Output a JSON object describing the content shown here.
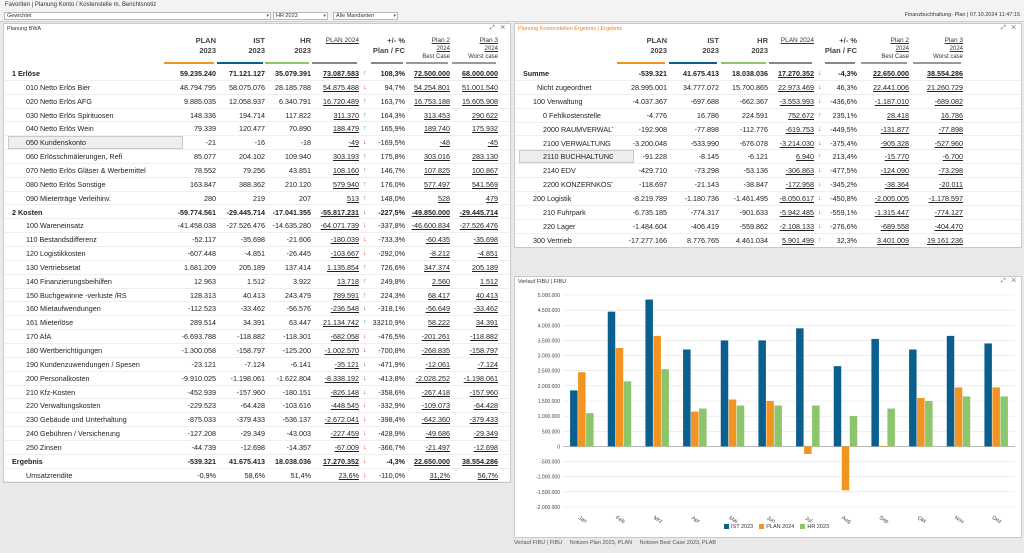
{
  "topbar": {
    "favorites": "Favoriten | Planung Konto / Kostenstelle m. Berichtsnotiz",
    "selects": [
      "Gewichtet",
      "",
      "HR 2023",
      "Alle Mandanten"
    ],
    "right_text": "Finanzbuchhaltung- Plan | 07.10.2024 11:47:15"
  },
  "left_panel": {
    "title": "Planung BWA",
    "headers": [
      {
        "l1": "PLAN",
        "l2": "2023"
      },
      {
        "l1": "IST",
        "l2": "2023"
      },
      {
        "l1": "HR",
        "l2": "2023"
      },
      {
        "l1": "PLAN 2024",
        "l2": ""
      },
      {
        "l1": "+/- %",
        "l2": "Plan / FC"
      },
      {
        "l1": "Plan 2",
        "l2": "2024",
        "l3": "Best Case"
      },
      {
        "l1": "Plan 3",
        "l2": "2024",
        "l3": "Worst case"
      }
    ],
    "rows": [
      {
        "label": "1 Erlöse",
        "bold": true,
        "vals": [
          "59.235.240",
          "71.121.127",
          "35.079.391",
          "73.087.583"
        ],
        "dir": "up",
        "pct": "108,3%",
        "p2": "72.500.000",
        "p3": "68.000.000"
      },
      {
        "label": "010 Netto Erlös Bier",
        "vals": [
          "48.794.795",
          "58.075.076",
          "28.185.788",
          "54.875.488"
        ],
        "dir": "down",
        "pct": "94,7%",
        "p2": "54.254.801",
        "p3": "51.001.540"
      },
      {
        "label": "020 Netto Erlös AFG",
        "vals": [
          "9.885.035",
          "12.058.937",
          "6.340.791",
          "16.720.489"
        ],
        "dir": "up",
        "pct": "163,7%",
        "p2": "16.753.188",
        "p3": "15.605.908"
      },
      {
        "label": "030 Netto Erlös Spirituosen",
        "vals": [
          "148.336",
          "194.714",
          "117.822",
          "311.370"
        ],
        "dir": "up",
        "pct": "164,3%",
        "p2": "313.453",
        "p3": "290.622"
      },
      {
        "label": "040 Netto Erlös Wein",
        "vals": [
          "79.339",
          "120.477",
          "70.890",
          "188.479"
        ],
        "dir": "up",
        "pct": "165,9%",
        "p2": "189.740",
        "p3": "175.932"
      },
      {
        "label": "050 Kundenskonto",
        "vals": [
          "-21",
          "-16",
          "-18",
          "-49"
        ],
        "dir": "down",
        "pct": "-169,5%",
        "p2": "-48",
        "p3": "-45",
        "sel": true
      },
      {
        "label": "060 Erlösschmälerungen, Refi",
        "vals": [
          "85.077",
          "204.102",
          "109.940",
          "303.193"
        ],
        "dir": "up",
        "pct": "175,8%",
        "p2": "303.016",
        "p3": "283.130"
      },
      {
        "label": "070 Netto Erlös Gläser & Werbemittel",
        "vals": [
          "78.552",
          "79.256",
          "43.851",
          "108.160"
        ],
        "dir": "up",
        "pct": "146,7%",
        "p2": "107.825",
        "p3": "100.867"
      },
      {
        "label": "080 Netto Erlös Sonstige",
        "vals": [
          "163.847",
          "388.362",
          "210.120",
          "579.940"
        ],
        "dir": "up",
        "pct": "176,0%",
        "p2": "577.497",
        "p3": "541.569"
      },
      {
        "label": "090 Mieterträge Verleihinv.",
        "vals": [
          "280",
          "219",
          "207",
          "513"
        ],
        "dir": "up",
        "pct": "148,0%",
        "p2": "528",
        "p3": "479"
      },
      {
        "label": "2 Kosten",
        "bold": true,
        "vals": [
          "-59.774.561",
          "-29.445.714",
          "-17.041.355",
          "-55.817.231"
        ],
        "dir": "down",
        "pct": "-227,5%",
        "p2": "-49.850.000",
        "p3": "-29.445.714"
      },
      {
        "label": "100 Wareneinsatz",
        "vals": [
          "-41.458.038",
          "-27.526.476",
          "-14.635.280",
          "-64.071.739"
        ],
        "dir": "down",
        "pct": "-337,8%",
        "p2": "-46.600.834",
        "p3": "-27.526.476"
      },
      {
        "label": "110 Bestandsdifferenz",
        "vals": [
          "-52.117",
          "-35.698",
          "-21.606",
          "-180.039"
        ],
        "dir": "down",
        "pct": "-733,3%",
        "p2": "-60.435",
        "p3": "-35.698"
      },
      {
        "label": "120 Logistikkosten",
        "vals": [
          "-607.448",
          "-4.851",
          "-26.445",
          "-103.667"
        ],
        "dir": "down",
        "pct": "-292,0%",
        "p2": "-8.212",
        "p3": "-4.851"
      },
      {
        "label": "130 Vertriebsetat",
        "vals": [
          "1.681.209",
          "205.189",
          "137.414",
          "1.135.854"
        ],
        "dir": "up",
        "pct": "726,6%",
        "p2": "347.374",
        "p3": "205.189"
      },
      {
        "label": "140 Finanzierungsbeihilfen",
        "vals": [
          "12.963",
          "1.512",
          "3.922",
          "13.718"
        ],
        "dir": "up",
        "pct": "249,8%",
        "p2": "2.560",
        "p3": "1.512"
      },
      {
        "label": "150 Buchgewinne -verluste /RS",
        "vals": [
          "128.313",
          "40.413",
          "243.479",
          "789.591"
        ],
        "dir": "up",
        "pct": "224,3%",
        "p2": "68.417",
        "p3": "40.413"
      },
      {
        "label": "160 Mietaufwendungen",
        "vals": [
          "-112.523",
          "-33.462",
          "-56.576",
          "-236.548"
        ],
        "dir": "down",
        "pct": "-318,1%",
        "p2": "-56.649",
        "p3": "-33.462"
      },
      {
        "label": "161 Mieterlöse",
        "vals": [
          "289.514",
          "34.391",
          "63.447",
          "21.134.742"
        ],
        "dir": "up",
        "pct": "33210,9%",
        "p2": "58.222",
        "p3": "34.391"
      },
      {
        "label": "170 AfA",
        "vals": [
          "-6.693.788",
          "-118.882",
          "-118.301",
          "-682.058"
        ],
        "dir": "down",
        "pct": "-476,5%",
        "p2": "-201.261",
        "p3": "-118.882"
      },
      {
        "label": "180 Wertberichtigungen",
        "vals": [
          "-1.300.058",
          "-158.797",
          "-125.200",
          "-1.002.570"
        ],
        "dir": "down",
        "pct": "-700,8%",
        "p2": "-268.835",
        "p3": "-158.797"
      },
      {
        "label": "190 Kundenzuwendungen / Spesen",
        "vals": [
          "-23.121",
          "-7.124",
          "-6.141",
          "-35.121"
        ],
        "dir": "down",
        "pct": "-471,9%",
        "p2": "-12.061",
        "p3": "-7.124"
      },
      {
        "label": "200 Personalkosten",
        "vals": [
          "-9.910.025",
          "-1.198.061",
          "-1.622.804",
          "-8.338.192"
        ],
        "dir": "down",
        "pct": "-413,8%",
        "p2": "-2.028.252",
        "p3": "-1.198.061"
      },
      {
        "label": "210 Kfz-Kosten",
        "vals": [
          "-452.939",
          "-157.960",
          "-180.151",
          "-826.148"
        ],
        "dir": "down",
        "pct": "-358,6%",
        "p2": "-267.418",
        "p3": "-157.960"
      },
      {
        "label": "220 Verwaltungskosten",
        "vals": [
          "-229.523",
          "-64.428",
          "-103.616",
          "-448.545"
        ],
        "dir": "down",
        "pct": "-332,9%",
        "p2": "-109.073",
        "p3": "-64.428"
      },
      {
        "label": "230 Gebäude und Unterhaltung",
        "vals": [
          "-875.033",
          "-379.433",
          "-536.137",
          "-2.672.041"
        ],
        "dir": "down",
        "pct": "-398,4%",
        "p2": "-642.360",
        "p3": "-379.433"
      },
      {
        "label": "240 Gebühren / Versicherung",
        "vals": [
          "-127.208",
          "-29.349",
          "-43.003",
          "-227.459"
        ],
        "dir": "down",
        "pct": "-428,9%",
        "p2": "-49.686",
        "p3": "-29.349"
      },
      {
        "label": "250 Zinsen",
        "vals": [
          "-44.739",
          "-12.698",
          "-14.357",
          "-67.009"
        ],
        "dir": "down",
        "pct": "-366,7%",
        "p2": "-21.497",
        "p3": "-12.698"
      },
      {
        "label": "Ergebnis",
        "bold": true,
        "vals": [
          "-539.321",
          "41.675.413",
          "18.038.036",
          "17.270.352"
        ],
        "dir": "down",
        "pct": "-4,3%",
        "p2": "22.650.000",
        "p3": "38.554.286"
      },
      {
        "label": "Umsatzrendite",
        "vals": [
          "-0,9%",
          "58,6%",
          "51,4%",
          "23,6%"
        ],
        "dir": "down",
        "pct": "-110,0%",
        "p2": "31,2%",
        "p3": "56,7%"
      }
    ]
  },
  "right_panel": {
    "title": "Planung Kostenstellen Ergebnis | Ergebnis",
    "rows": [
      {
        "label": "Summe",
        "bold": true,
        "vals": [
          "-539.321",
          "41.675.413",
          "18.038.036",
          "17.270.352"
        ],
        "dir": "down",
        "pct": "-4,3%",
        "p2": "22.650.000",
        "p3": "38.554.286"
      },
      {
        "label": "Nicht zugeordnet",
        "vals": [
          "28.995.001",
          "34.777.072",
          "15.700.865",
          "22.973.469"
        ],
        "dir": "down",
        "pct": "46,3%",
        "p2": "22.441.006",
        "p3": "21.260.729"
      },
      {
        "label": "100 Verwaltung",
        "indent": 1,
        "vals": [
          "-4.037.367",
          "-697.688",
          "-662.367",
          "-3.553.993"
        ],
        "dir": "down",
        "pct": "-436,6%",
        "p2": "-1.187.010",
        "p3": "-689.082"
      },
      {
        "label": "0 Fehlkostenstelle",
        "indent": 2,
        "vals": [
          "-4.776",
          "16.786",
          "224.591",
          "752.672"
        ],
        "dir": "up",
        "pct": "235,1%",
        "p2": "28.418",
        "p3": "16.786"
      },
      {
        "label": "2000 RAUMVERWALTG",
        "indent": 2,
        "vals": [
          "-192.908",
          "-77.898",
          "-112.776",
          "-619.753"
        ],
        "dir": "down",
        "pct": "-449,5%",
        "p2": "-131.877",
        "p3": "-77.898"
      },
      {
        "label": "2100 VERWALTUNG",
        "indent": 2,
        "vals": [
          "-3.200.048",
          "-533.990",
          "-676.078",
          "-3.214.030"
        ],
        "dir": "down",
        "pct": "-375,4%",
        "p2": "-905.328",
        "p3": "-527.960"
      },
      {
        "label": "2110 BUCHHALTUNG",
        "indent": 2,
        "sel": true,
        "vals": [
          "-91.228",
          "-8.145",
          "-6.121",
          "6.940"
        ],
        "dir": "up",
        "pct": "213,4%",
        "p2": "-15.770",
        "p3": "-6.700"
      },
      {
        "label": "2140 EDV",
        "indent": 2,
        "vals": [
          "-429.710",
          "-73.298",
          "-53.136",
          "-306.863"
        ],
        "dir": "down",
        "pct": "-477,5%",
        "p2": "-124.090",
        "p3": "-73.298"
      },
      {
        "label": "2200 KONZERNKOSTE",
        "indent": 2,
        "vals": [
          "-118.697",
          "-21.143",
          "-38.847",
          "-172.958"
        ],
        "dir": "down",
        "pct": "-345,2%",
        "p2": "-38.364",
        "p3": "-20.011"
      },
      {
        "label": "200 Logistik",
        "indent": 1,
        "vals": [
          "-8.219.789",
          "-1.180.736",
          "-1.461.495",
          "-8.050.617"
        ],
        "dir": "down",
        "pct": "-450,8%",
        "p2": "-2.005.005",
        "p3": "-1.178.597"
      },
      {
        "label": "210 Fuhrpark",
        "indent": 2,
        "vals": [
          "-6.735.185",
          "-774.317",
          "-901.633",
          "-5.942.485"
        ],
        "dir": "down",
        "pct": "-559,1%",
        "p2": "-1.315.447",
        "p3": "-774.127"
      },
      {
        "label": "220 Lager",
        "indent": 2,
        "vals": [
          "-1.484.604",
          "-406.419",
          "-559.862",
          "-2.108.133"
        ],
        "dir": "down",
        "pct": "-276,6%",
        "p2": "-689.558",
        "p3": "-404.470"
      },
      {
        "label": "300 Vertrieb",
        "indent": 1,
        "vals": [
          "-17.277.166",
          "8.776.765",
          "4.461.034",
          "5.901.499"
        ],
        "dir": "up",
        "pct": "32,3%",
        "p2": "3.401.009",
        "p3": "19.161.236"
      }
    ]
  },
  "chart_panel": {
    "title": "Verlauf FIBU | FIBU",
    "tabs": [
      "Verlauf FIBU | FIBU",
      "Notizen Plan 2023, PLAN",
      "Notizen Best Case 2023, PLAB"
    ]
  },
  "chart_data": {
    "type": "bar",
    "categories": [
      "Jan",
      "Feb",
      "Mrz",
      "Apr",
      "Mai",
      "Jun",
      "Jul",
      "Aug",
      "Sep",
      "Okt",
      "Nov",
      "Dez"
    ],
    "ylim": [
      -2000000,
      5000000
    ],
    "yticks": [
      "-2.000.000",
      "-1.500.000",
      "-1.000.000",
      "-500.000",
      "0",
      "500.000",
      "1.000.000",
      "1.500.000",
      "2.000.000",
      "2.500.000",
      "3.000.000",
      "3.500.000",
      "4.000.000",
      "4.500.000",
      "5.000.000"
    ],
    "series": [
      {
        "name": "IST 2023",
        "color": "#0b5f8f",
        "values": [
          1850000,
          4450000,
          4850000,
          3200000,
          3500000,
          3500000,
          3900000,
          2650000,
          3550000,
          3200000,
          3650000,
          3400000
        ]
      },
      {
        "name": "PLAN 2024",
        "color": "#f29421",
        "values": [
          2450000,
          3250000,
          3650000,
          1150000,
          1550000,
          1500000,
          -250000,
          -1450000,
          0,
          1600000,
          1950000,
          1950000
        ]
      },
      {
        "name": "HR 2023",
        "color": "#8cc56b",
        "values": [
          1100000,
          2150000,
          2550000,
          1250000,
          1350000,
          1350000,
          1350000,
          1000000,
          1250000,
          1500000,
          1650000,
          1650000
        ]
      }
    ]
  }
}
